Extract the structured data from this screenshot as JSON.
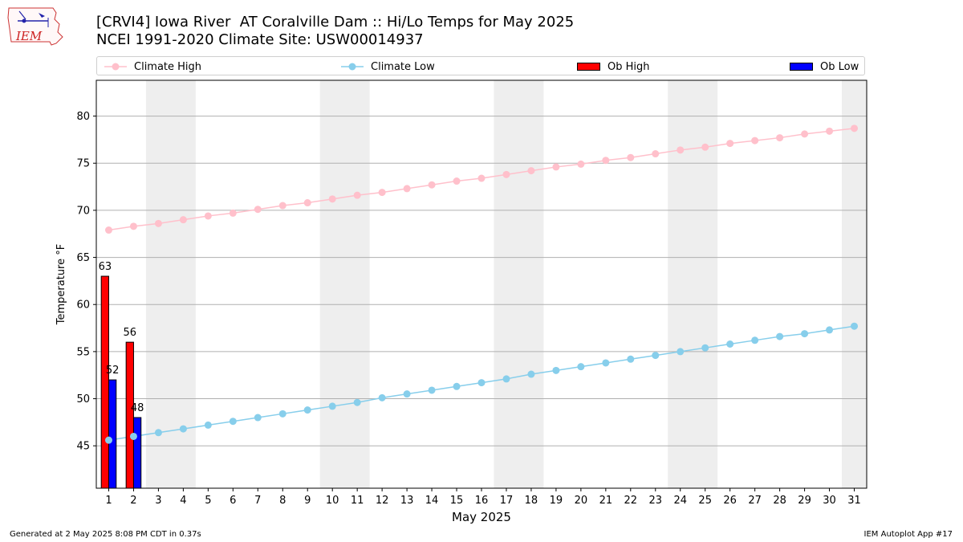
{
  "title": "[CRVI4] Iowa River  AT Coralville Dam :: Hi/Lo Temps for May 2025",
  "subtitle": "NCEI 1991-2020 Climate Site: USW00014937",
  "logo_text": "IEM",
  "footer": {
    "left": "Generated at 2 May 2025 8:08 PM CDT in 0.37s",
    "right": "IEM Autoplot App #17"
  },
  "colors": {
    "climate_high": "#ffc0cb",
    "climate_low": "#87ceeb",
    "ob_high": "#ff0000",
    "ob_low": "#0000ff",
    "weekend_band": "#eeeeee",
    "grid": "#b0b0b0"
  },
  "chart_data": {
    "type": "bar",
    "xlabel": "May 2025",
    "ylabel": "Temperature °F",
    "xlim": [
      0.5,
      31.5
    ],
    "ylim": [
      40.5,
      83.8
    ],
    "yticks": [
      45,
      50,
      55,
      60,
      65,
      70,
      75,
      80
    ],
    "x": [
      1,
      2,
      3,
      4,
      5,
      6,
      7,
      8,
      9,
      10,
      11,
      12,
      13,
      14,
      15,
      16,
      17,
      18,
      19,
      20,
      21,
      22,
      23,
      24,
      25,
      26,
      27,
      28,
      29,
      30,
      31
    ],
    "grid": "horizontal",
    "legend_position": "top",
    "weekend_bands": [
      [
        2.5,
        4.5
      ],
      [
        9.5,
        11.5
      ],
      [
        16.5,
        18.5
      ],
      [
        23.5,
        25.5
      ],
      [
        30.5,
        31.5
      ]
    ],
    "series": [
      {
        "name": "Climate High",
        "kind": "line",
        "values": [
          67.9,
          68.3,
          68.6,
          69.0,
          69.4,
          69.7,
          70.1,
          70.5,
          70.8,
          71.2,
          71.6,
          71.9,
          72.3,
          72.7,
          73.1,
          73.4,
          73.8,
          74.2,
          74.6,
          74.9,
          75.3,
          75.6,
          76.0,
          76.4,
          76.7,
          77.1,
          77.4,
          77.7,
          78.1,
          78.4,
          78.7
        ]
      },
      {
        "name": "Climate Low",
        "kind": "line",
        "values": [
          45.6,
          46.0,
          46.4,
          46.8,
          47.2,
          47.6,
          48.0,
          48.4,
          48.8,
          49.2,
          49.6,
          50.1,
          50.5,
          50.9,
          51.3,
          51.7,
          52.1,
          52.6,
          53.0,
          53.4,
          53.8,
          54.2,
          54.6,
          55.0,
          55.4,
          55.8,
          56.2,
          56.6,
          56.9,
          57.3,
          57.7
        ]
      },
      {
        "name": "Ob High",
        "kind": "bar",
        "x": [
          1,
          2
        ],
        "values": [
          63,
          56
        ],
        "labels": [
          "63",
          "56"
        ]
      },
      {
        "name": "Ob Low",
        "kind": "bar",
        "x": [
          1,
          2
        ],
        "values": [
          52,
          48
        ],
        "labels": [
          "52",
          "48"
        ]
      }
    ]
  }
}
